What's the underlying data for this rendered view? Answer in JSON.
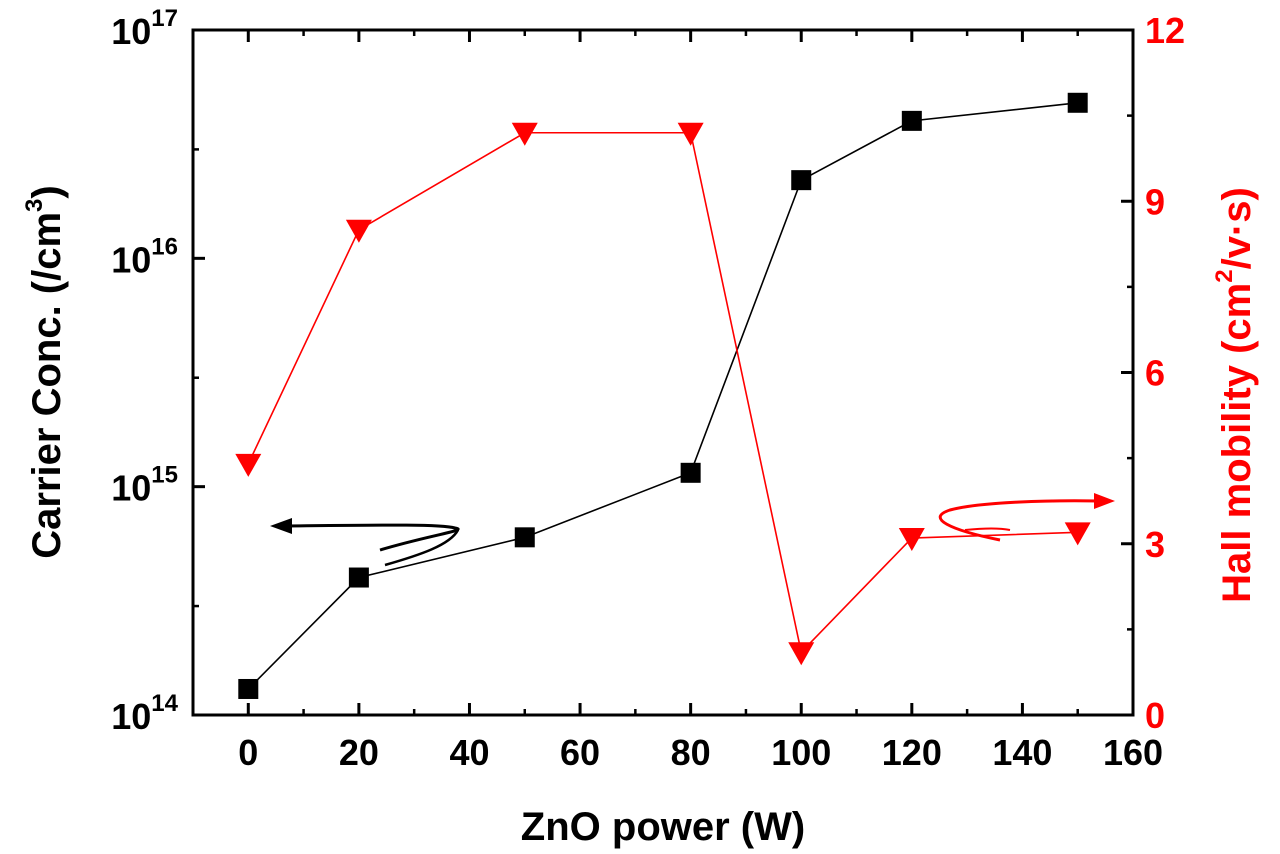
{
  "chart_data": {
    "type": "line",
    "xlabel": "ZnO power (W)",
    "ylabel_left": {
      "main": "Carrier Conc. (/cm",
      "sup": "3",
      "close": ")"
    },
    "ylabel_right": {
      "main": "Hall mobility (cm",
      "sup": "2",
      "rest": "/v·s)"
    },
    "xlim": [
      -10,
      160
    ],
    "xticks": [
      0,
      20,
      40,
      60,
      80,
      100,
      120,
      140,
      160
    ],
    "xtick_labels": [
      "0",
      "20",
      "40",
      "60",
      "80",
      "100",
      "120",
      "140",
      "160"
    ],
    "ylim_left": [
      100000000000000.0,
      1e+17
    ],
    "yscale_left": "log",
    "yticks_left": [
      {
        "base": "10",
        "exp": "14"
      },
      {
        "base": "10",
        "exp": "15"
      },
      {
        "base": "10",
        "exp": "16"
      },
      {
        "base": "10",
        "exp": "17"
      }
    ],
    "ylim_right": [
      0,
      12
    ],
    "yticks_right": [
      "0",
      "3",
      "6",
      "9",
      "12"
    ],
    "colors": {
      "carrier": "#000000",
      "mobility": "#ff0000"
    },
    "series": [
      {
        "name": "Carrier Conc.",
        "axis": "left",
        "marker": "square",
        "x": [
          0,
          20,
          50,
          80,
          100,
          120,
          150
        ],
        "values": [
          130000000000000.0,
          400000000000000.0,
          600000000000000.0,
          1150000000000000.0,
          2.2e+16,
          4e+16,
          4.8e+16
        ]
      },
      {
        "name": "Hall mobility",
        "axis": "right",
        "marker": "triangle-down",
        "x": [
          0,
          20,
          50,
          80,
          100,
          120,
          150
        ],
        "values": [
          4.4,
          8.5,
          10.2,
          10.2,
          1.1,
          3.1,
          3.2
        ]
      }
    ],
    "annotations": [
      {
        "text": "arrow pointing left to Carrier Conc. axis",
        "near_x": 35
      },
      {
        "text": "arrow pointing right to Hall mobility axis",
        "near_x": 135
      }
    ]
  }
}
